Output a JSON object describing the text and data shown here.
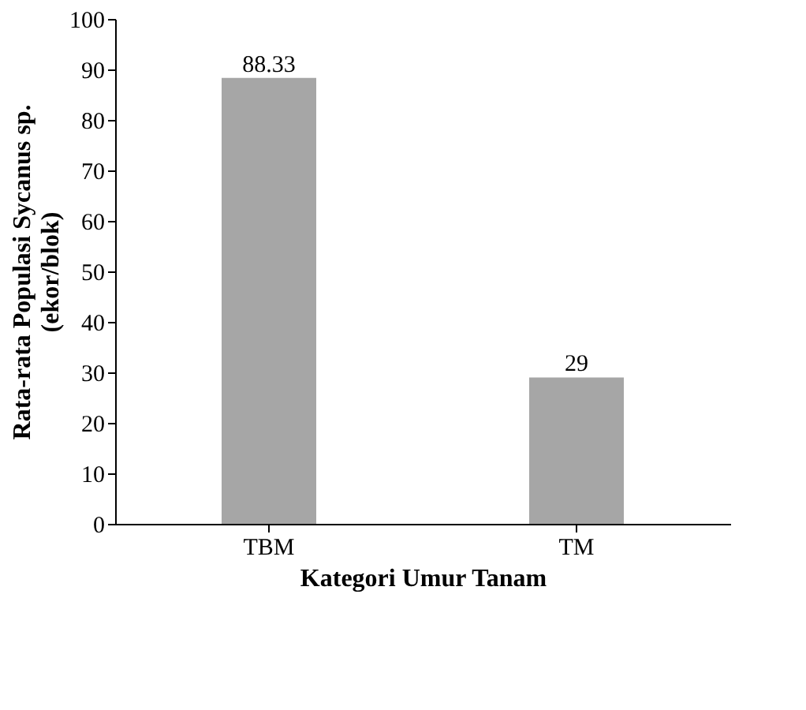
{
  "chart_data": {
    "type": "bar",
    "categories": [
      "TBM",
      "TM"
    ],
    "values": [
      88.33,
      29
    ],
    "color": "#a6a6a6",
    "xlabel": "Kategori Umur Tanam",
    "ylabel": [
      "Rata-rata Populasi Sycanus sp.",
      "(ekor/blok)"
    ],
    "ylim": [
      0,
      100
    ],
    "yticks": [
      0,
      10,
      20,
      30,
      40,
      50,
      60,
      70,
      80,
      90,
      100
    ],
    "data_labels": true,
    "grid": false
  }
}
